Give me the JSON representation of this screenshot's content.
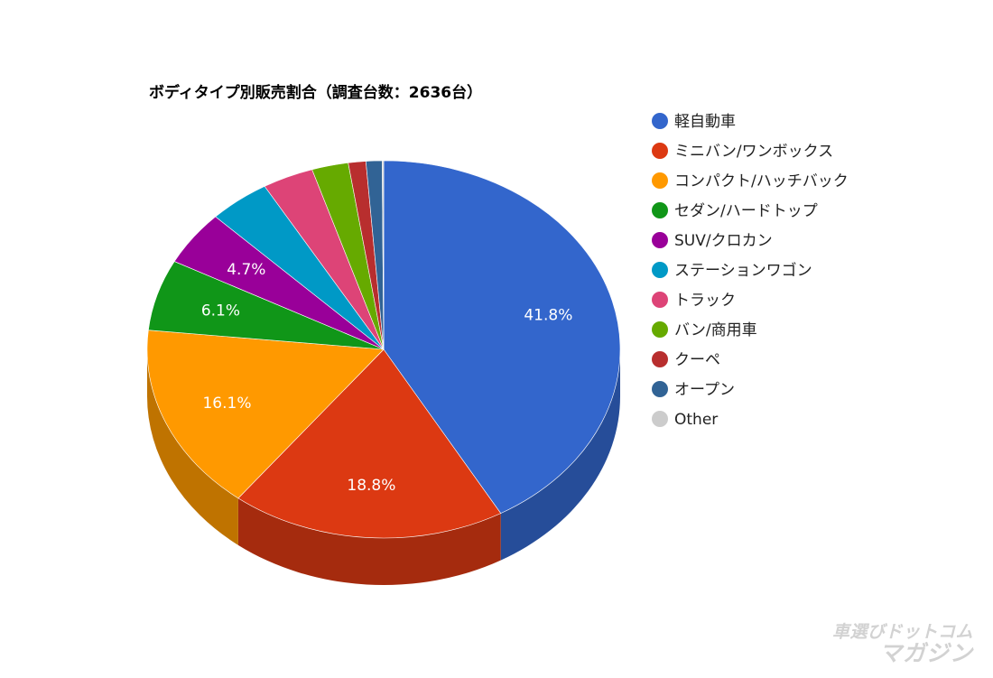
{
  "chart_data": {
    "type": "pie",
    "title": "ボディタイプ別販売割合（調査台数：2636台）",
    "categories": [
      "軽自動車",
      "ミニバン/ワンボックス",
      "コンパクト/ハッチバック",
      "セダン/ハードトップ",
      "SUV/クロカン",
      "ステーションワゴン",
      "トラック",
      "バン/商用車",
      "クーペ",
      "オープン",
      "Other"
    ],
    "values": [
      41.8,
      18.8,
      16.1,
      6.1,
      4.7,
      4.2,
      3.5,
      2.5,
      1.2,
      1.1,
      0.1
    ],
    "labels_shown": [
      "41.8%",
      "18.8%",
      "16.1%",
      "6.1%",
      "4.7%",
      "",
      "",
      "",
      "",
      "",
      ""
    ],
    "colors": [
      "#3366cc",
      "#dc3912",
      "#ff9900",
      "#109618",
      "#990099",
      "#0099c6",
      "#dd4477",
      "#66aa00",
      "#b82e2e",
      "#316395",
      "#cccccc"
    ],
    "legend_position": "right",
    "style": "3d"
  },
  "watermark": {
    "line1": "車選びドットコム",
    "line2": "マガジン"
  }
}
